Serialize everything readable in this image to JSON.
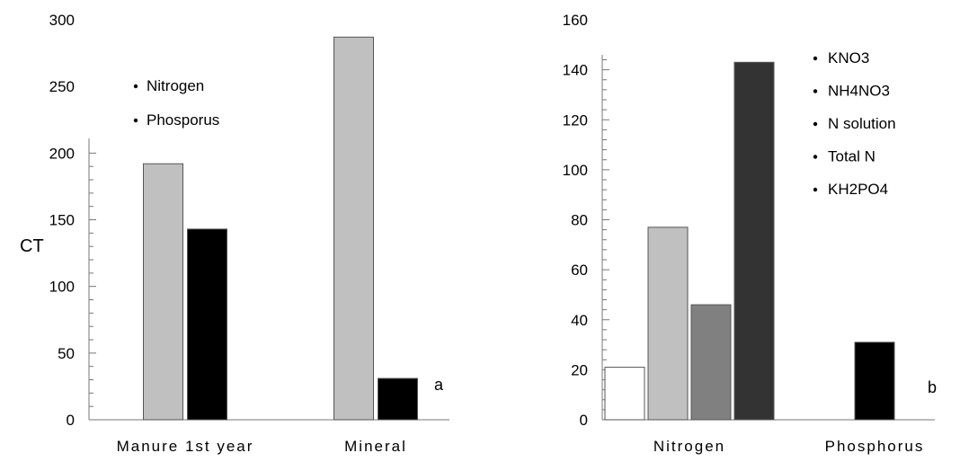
{
  "chart_data": [
    {
      "type": "bar",
      "ylabel": "CT",
      "ylim": [
        0,
        300
      ],
      "yticks": [
        "0",
        "50",
        "100",
        "150",
        "200",
        "250",
        "300"
      ],
      "categories": [
        "Manure  1st year",
        "Mineral"
      ],
      "series": [
        {
          "name": "Nitrogen",
          "color": "#c0c0c0",
          "values": [
            192,
            287
          ]
        },
        {
          "name": "Phosporus",
          "color": "#000000",
          "values": [
            143,
            31
          ]
        }
      ],
      "panel_label": "a",
      "legend_position": "top-left",
      "grid": false
    },
    {
      "type": "bar",
      "ylim": [
        0,
        160
      ],
      "yticks": [
        "0",
        "20",
        "40",
        "60",
        "80",
        "100",
        "120",
        "140",
        "160"
      ],
      "categories": [
        "Nitrogen",
        "Phosphorus"
      ],
      "series": [
        {
          "name": "KNO3",
          "color": "#ffffff",
          "values": [
            21,
            null
          ]
        },
        {
          "name": "NH4NO3",
          "color": "#c0c0c0",
          "values": [
            77,
            null
          ]
        },
        {
          "name": "N solution",
          "color": "#808080",
          "values": [
            46,
            null
          ]
        },
        {
          "name": "Total N",
          "color": "#333333",
          "values": [
            143,
            null
          ]
        },
        {
          "name": "KH2PO4",
          "color": "#000000",
          "values": [
            null,
            31
          ]
        }
      ],
      "panel_label": "b",
      "legend_position": "top-right",
      "grid": false
    }
  ]
}
